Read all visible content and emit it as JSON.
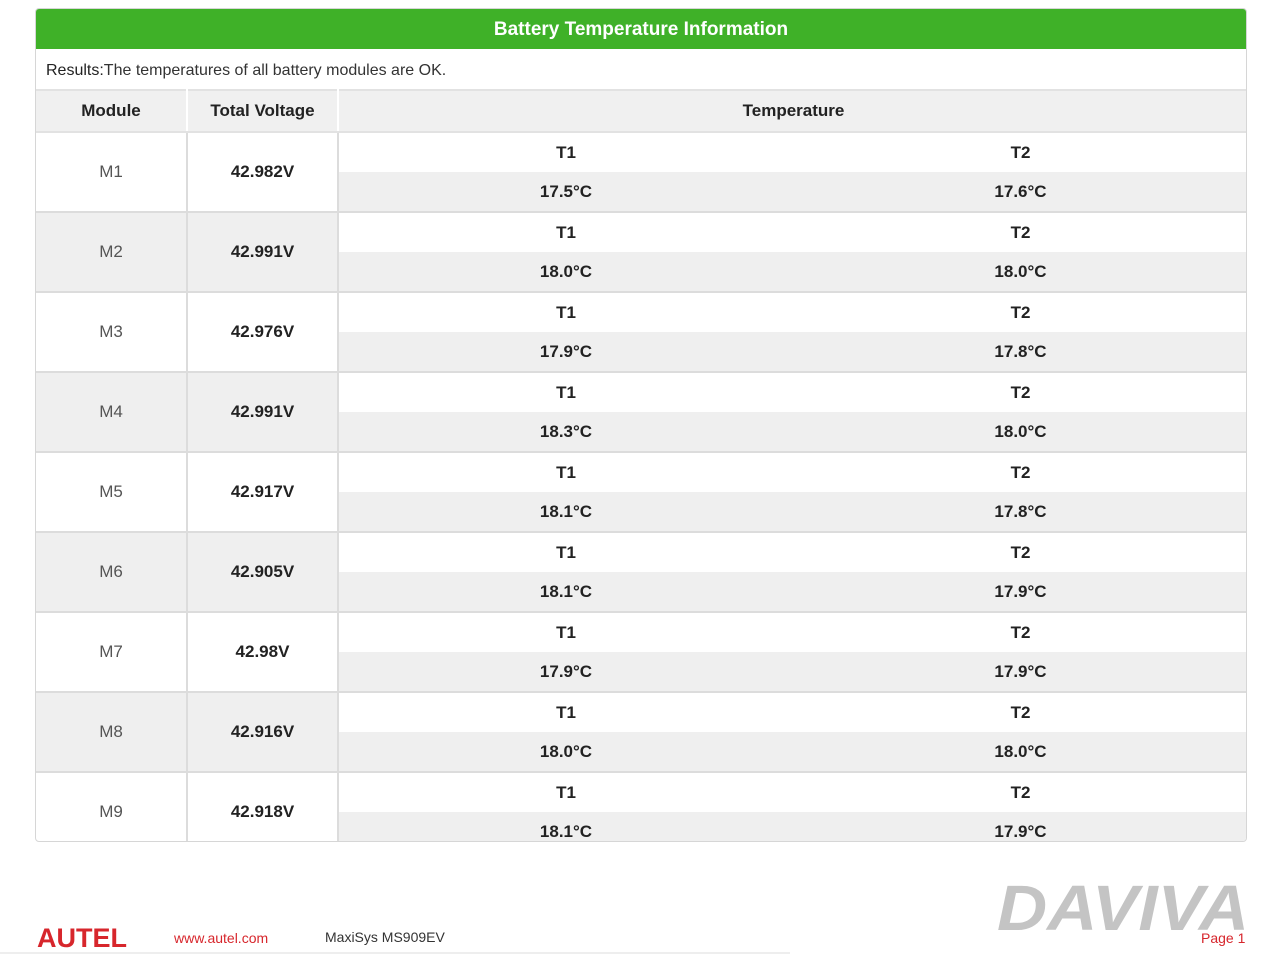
{
  "report": {
    "title": "Battery Temperature Information",
    "results_label": "Results:",
    "results_text": "The temperatures of all battery modules are OK."
  },
  "table": {
    "headers": {
      "module": "Module",
      "voltage": "Total Voltage",
      "temperature": "Temperature"
    },
    "rows": [
      {
        "module": "M1",
        "voltage": "42.982V",
        "t1_label": "T1",
        "t2_label": "T2",
        "t1": "17.5°C",
        "t2": "17.6°C"
      },
      {
        "module": "M2",
        "voltage": "42.991V",
        "t1_label": "T1",
        "t2_label": "T2",
        "t1": "18.0°C",
        "t2": "18.0°C"
      },
      {
        "module": "M3",
        "voltage": "42.976V",
        "t1_label": "T1",
        "t2_label": "T2",
        "t1": "17.9°C",
        "t2": "17.8°C"
      },
      {
        "module": "M4",
        "voltage": "42.991V",
        "t1_label": "T1",
        "t2_label": "T2",
        "t1": "18.3°C",
        "t2": "18.0°C"
      },
      {
        "module": "M5",
        "voltage": "42.917V",
        "t1_label": "T1",
        "t2_label": "T2",
        "t1": "18.1°C",
        "t2": "17.8°C"
      },
      {
        "module": "M6",
        "voltage": "42.905V",
        "t1_label": "T1",
        "t2_label": "T2",
        "t1": "18.1°C",
        "t2": "17.9°C"
      },
      {
        "module": "M7",
        "voltage": "42.98V",
        "t1_label": "T1",
        "t2_label": "T2",
        "t1": "17.9°C",
        "t2": "17.9°C"
      },
      {
        "module": "M8",
        "voltage": "42.916V",
        "t1_label": "T1",
        "t2_label": "T2",
        "t1": "18.0°C",
        "t2": "18.0°C"
      },
      {
        "module": "M9",
        "voltage": "42.918V",
        "t1_label": "T1",
        "t2_label": "T2",
        "t1": "18.1°C",
        "t2": "17.9°C"
      }
    ]
  },
  "footer": {
    "brand": "AUTEL",
    "url": "www.autel.com",
    "model": "MaxiSys MS909EV",
    "watermark": "DAVIVA",
    "page": "Page 1"
  },
  "colors": {
    "header_green": "#3fb128",
    "brand_red": "#d7262c",
    "stripe_gray": "#efefef",
    "watermark_gray": "#c4c4c4"
  }
}
